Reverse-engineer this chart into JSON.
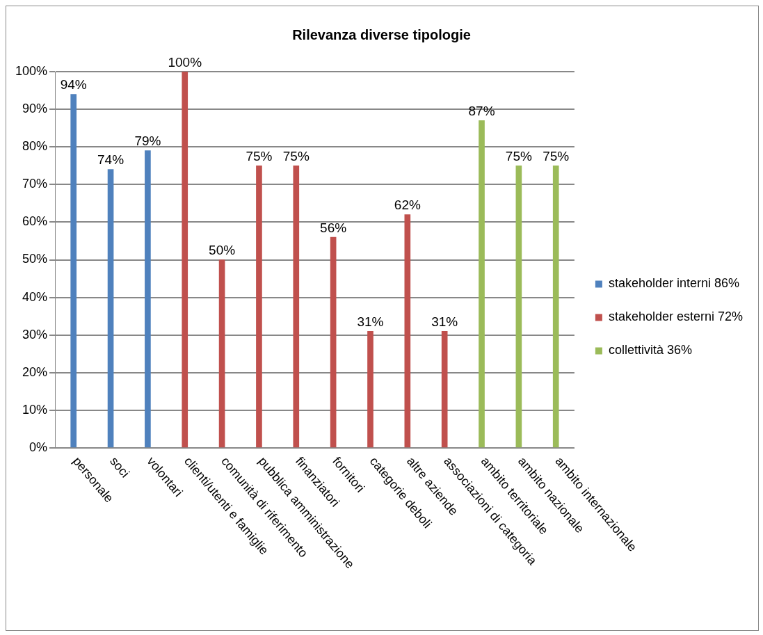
{
  "chart_data": {
    "type": "bar",
    "title": "Rilevanza diverse tipologie",
    "categories": [
      "personale",
      "soci",
      "volontari",
      "clienti/utenti e famiglie",
      "comunità di riferimento",
      "pubblica amministrazione",
      "finanziatori",
      "fornitori",
      "categorie deboli",
      "altre aziende",
      "associazioni di categoria",
      "ambito territoriale",
      "ambito nazionale",
      "ambito internazionale"
    ],
    "series": [
      {
        "name": "stakeholder interni 86%",
        "color": "#4f81bd",
        "values": [
          94,
          74,
          79,
          null,
          null,
          null,
          null,
          null,
          null,
          null,
          null,
          null,
          null,
          null
        ],
        "value_labels": [
          "94%",
          "74%",
          "79%",
          null,
          null,
          null,
          null,
          null,
          null,
          null,
          null,
          null,
          null,
          null
        ]
      },
      {
        "name": "stakeholder esterni 72%",
        "color": "#c0504d",
        "values": [
          null,
          null,
          null,
          100,
          50,
          75,
          75,
          56,
          31,
          62,
          31,
          null,
          null,
          null
        ],
        "value_labels": [
          null,
          null,
          null,
          "100%",
          "50%",
          "75%",
          "75%",
          "56%",
          "31%",
          "62%",
          "31%",
          null,
          null,
          null
        ]
      },
      {
        "name": "collettività 36%",
        "color": "#9bbb59",
        "values": [
          null,
          null,
          null,
          null,
          null,
          null,
          null,
          null,
          null,
          null,
          null,
          87,
          75,
          75
        ],
        "value_labels": [
          null,
          null,
          null,
          null,
          null,
          null,
          null,
          null,
          null,
          null,
          null,
          "87%",
          "75%",
          "75%"
        ]
      }
    ],
    "ylim": [
      0,
      100
    ],
    "yticks": [
      {
        "value": 0,
        "label": "0%"
      },
      {
        "value": 10,
        "label": "10%"
      },
      {
        "value": 20,
        "label": "20%"
      },
      {
        "value": 30,
        "label": "30%"
      },
      {
        "value": 40,
        "label": "40%"
      },
      {
        "value": 50,
        "label": "50%"
      },
      {
        "value": 60,
        "label": "60%"
      },
      {
        "value": 70,
        "label": "70%"
      },
      {
        "value": 80,
        "label": "80%"
      },
      {
        "value": 90,
        "label": "90%"
      },
      {
        "value": 100,
        "label": "100%"
      }
    ],
    "grid": "y",
    "legend": "right"
  }
}
